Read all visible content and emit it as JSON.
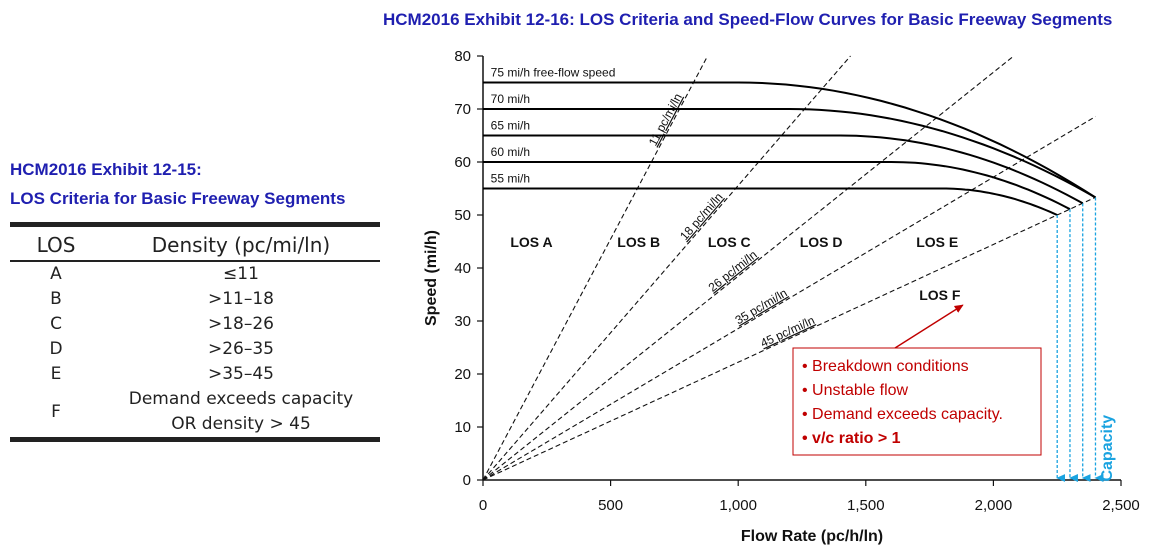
{
  "figure": {
    "title": "HCM2016 Exhibit 12-16: LOS Criteria and Speed-Flow Curves for Basic Freeway Segments"
  },
  "table": {
    "title_line1": "HCM2016 Exhibit 12-15:",
    "title_line2": "LOS Criteria for Basic Freeway Segments",
    "headers": [
      "LOS",
      "Density (pc/mi/ln)"
    ],
    "rows": [
      {
        "los": "A",
        "density": "≤11"
      },
      {
        "los": "B",
        "density": ">11–18"
      },
      {
        "los": "C",
        "density": ">18–26"
      },
      {
        "los": "D",
        "density": ">26–35"
      },
      {
        "los": "E",
        "density": ">35–45"
      },
      {
        "los": "F",
        "density_line1": "Demand exceeds capacity",
        "density_line2": "OR density > 45"
      }
    ]
  },
  "chart_data": {
    "type": "line",
    "title": "HCM2016 Exhibit 12-16: LOS Criteria and Speed-Flow Curves for Basic Freeway Segments",
    "xlabel": "Flow Rate (pc/h/ln)",
    "ylabel": "Speed (mi/h)",
    "xlim": [
      0,
      2500
    ],
    "ylim": [
      0,
      80
    ],
    "xticks": [
      0,
      500,
      1000,
      1500,
      2000,
      2500
    ],
    "xtick_labels": [
      "0",
      "500",
      "1,000",
      "1,500",
      "2,000",
      "2,500"
    ],
    "yticks": [
      0,
      10,
      20,
      30,
      40,
      50,
      60,
      70,
      80
    ],
    "grid": false,
    "series": [
      {
        "name": "75 mi/h free-flow speed",
        "ffs": 75,
        "breakpoint": 1000,
        "capacity": 2400,
        "speed_at_capacity": 53.3
      },
      {
        "name": "70 mi/h",
        "ffs": 70,
        "breakpoint": 1200,
        "capacity": 2400,
        "speed_at_capacity": 53.3
      },
      {
        "name": "65 mi/h",
        "ffs": 65,
        "breakpoint": 1400,
        "capacity": 2350,
        "speed_at_capacity": 52.2
      },
      {
        "name": "60 mi/h",
        "ffs": 60,
        "breakpoint": 1600,
        "capacity": 2300,
        "speed_at_capacity": 51.1
      },
      {
        "name": "55 mi/h",
        "ffs": 55,
        "breakpoint": 1800,
        "capacity": 2250,
        "speed_at_capacity": 50.0
      }
    ],
    "density_lines": [
      {
        "label": "11 pc/mi/ln",
        "density": 11
      },
      {
        "label": "18 pc/mi/ln",
        "density": 18
      },
      {
        "label": "26 pc/mi/ln",
        "density": 26
      },
      {
        "label": "35 pc/mi/ln",
        "density": 35
      },
      {
        "label": "45 pc/mi/ln",
        "density": 45
      }
    ],
    "los_regions": [
      {
        "label": "LOS A",
        "x": 190,
        "y": 44
      },
      {
        "label": "LOS B",
        "x": 610,
        "y": 44
      },
      {
        "label": "LOS C",
        "x": 965,
        "y": 44
      },
      {
        "label": "LOS D",
        "x": 1325,
        "y": 44
      },
      {
        "label": "LOS E",
        "x": 1780,
        "y": 44
      },
      {
        "label": "LOS F",
        "x": 1790,
        "y": 34
      }
    ],
    "capacity_marks": [
      2250,
      2300,
      2350,
      2400
    ],
    "capacity_label": "Capacity",
    "annotation": {
      "bullets": [
        "Breakdown conditions",
        "Unstable flow",
        "Demand exceeds capacity."
      ],
      "bold_bullet": "v/c ratio > 1",
      "arrow_to": {
        "x": 1880,
        "y": 33
      }
    },
    "colors": {
      "curves": "#000000",
      "title": "#1f1fb0",
      "capacity": "#1aa3e0",
      "annotation": "#c00000"
    }
  }
}
